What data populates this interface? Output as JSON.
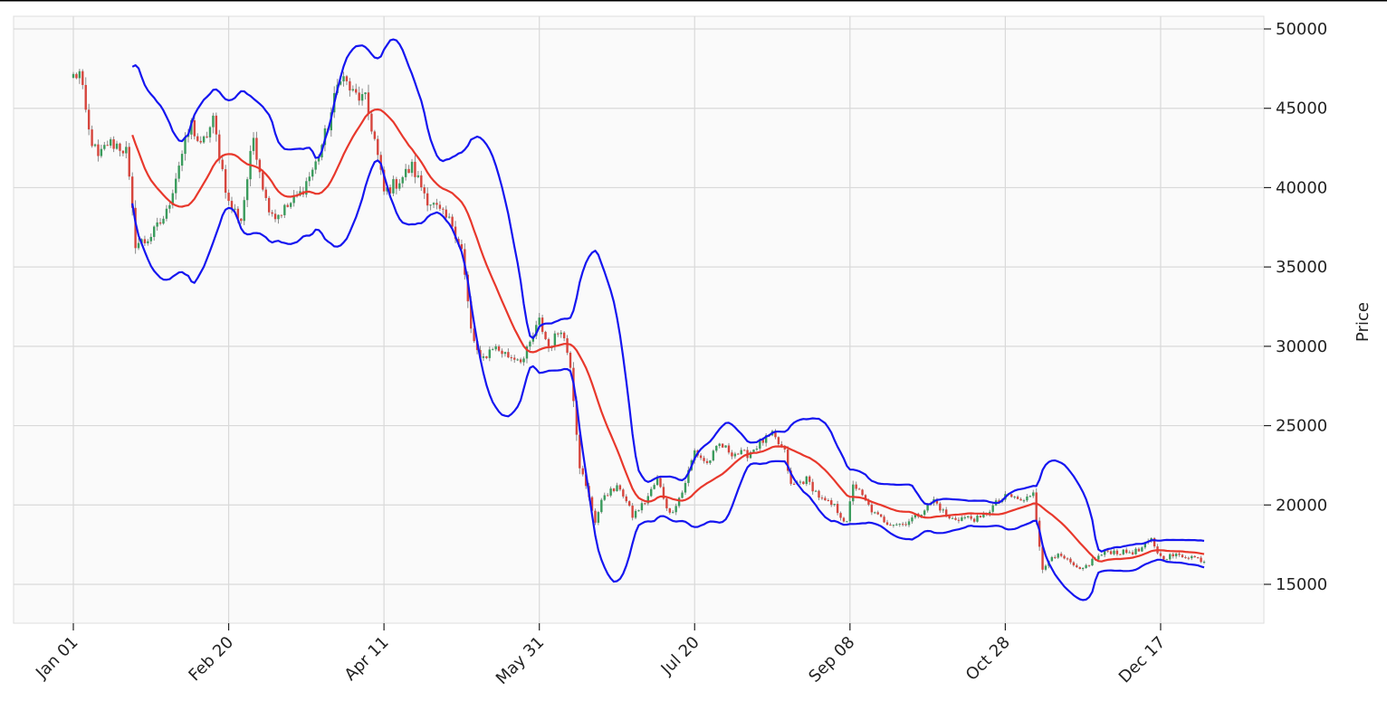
{
  "chart_data": {
    "type": "candlestick",
    "title": "",
    "xlabel": "",
    "ylabel": "Price",
    "ylim": [
      12500,
      51000
    ],
    "grid": true,
    "legend": "none",
    "x_tick_labels": [
      "Jan 01",
      "Feb 20",
      "Apr 11",
      "May 31",
      "Jul 20",
      "Sep 08",
      "Oct 28",
      "Dec 17"
    ],
    "y_ticks": [
      15000,
      20000,
      25000,
      30000,
      35000,
      40000,
      45000,
      50000
    ],
    "y_tick_labels": [
      "15000",
      "20000",
      "25000",
      "30000",
      "35000",
      "40000",
      "45000",
      "50000"
    ],
    "date_range": [
      "2022-01-01",
      "2022-12-31"
    ],
    "candles_color_up": "#3a9b5c",
    "candles_color_down": "#d6453d",
    "close_anchors": [
      [
        "2022-01-01",
        47000
      ],
      [
        "2022-01-03",
        47200
      ],
      [
        "2022-01-06",
        43500
      ],
      [
        "2022-01-09",
        41800
      ],
      [
        "2022-01-12",
        42800
      ],
      [
        "2022-01-15",
        42700
      ],
      [
        "2022-01-18",
        42300
      ],
      [
        "2022-01-21",
        36500
      ],
      [
        "2022-01-24",
        36600
      ],
      [
        "2022-01-27",
        37200
      ],
      [
        "2022-01-31",
        38400
      ],
      [
        "2022-02-04",
        41500
      ],
      [
        "2022-02-08",
        44000
      ],
      [
        "2022-02-11",
        42500
      ],
      [
        "2022-02-15",
        44200
      ],
      [
        "2022-02-20",
        39000
      ],
      [
        "2022-02-24",
        38000
      ],
      [
        "2022-02-28",
        43200
      ],
      [
        "2022-03-04",
        39200
      ],
      [
        "2022-03-07",
        38200
      ],
      [
        "2022-03-11",
        38800
      ],
      [
        "2022-03-15",
        39600
      ],
      [
        "2022-03-20",
        41500
      ],
      [
        "2022-03-24",
        43900
      ],
      [
        "2022-03-28",
        47200
      ],
      [
        "2022-04-01",
        45900
      ],
      [
        "2022-04-05",
        45500
      ],
      [
        "2022-04-08",
        43000
      ],
      [
        "2022-04-11",
        39700
      ],
      [
        "2022-04-15",
        40300
      ],
      [
        "2022-04-20",
        41300
      ],
      [
        "2022-04-25",
        39300
      ],
      [
        "2022-04-30",
        38200
      ],
      [
        "2022-05-03",
        37700
      ],
      [
        "2022-05-06",
        36100
      ],
      [
        "2022-05-09",
        31000
      ],
      [
        "2022-05-12",
        29000
      ],
      [
        "2022-05-16",
        30000
      ],
      [
        "2022-05-21",
        29400
      ],
      [
        "2022-05-26",
        29200
      ],
      [
        "2022-05-31",
        31600
      ],
      [
        "2022-06-03",
        29900
      ],
      [
        "2022-06-07",
        31200
      ],
      [
        "2022-06-10",
        28900
      ],
      [
        "2022-06-13",
        22500
      ],
      [
        "2022-06-16",
        20400
      ],
      [
        "2022-06-18",
        19000
      ],
      [
        "2022-06-21",
        20700
      ],
      [
        "2022-06-26",
        21100
      ],
      [
        "2022-06-30",
        19300
      ],
      [
        "2022-07-04",
        20200
      ],
      [
        "2022-07-08",
        21600
      ],
      [
        "2022-07-12",
        19400
      ],
      [
        "2022-07-16",
        20800
      ],
      [
        "2022-07-20",
        23400
      ],
      [
        "2022-07-24",
        22600
      ],
      [
        "2022-07-28",
        23800
      ],
      [
        "2022-08-01",
        23300
      ],
      [
        "2022-08-06",
        23200
      ],
      [
        "2022-08-10",
        23900
      ],
      [
        "2022-08-14",
        24400
      ],
      [
        "2022-08-18",
        23300
      ],
      [
        "2022-08-20",
        21200
      ],
      [
        "2022-08-25",
        21600
      ],
      [
        "2022-08-30",
        20300
      ],
      [
        "2022-09-03",
        19900
      ],
      [
        "2022-09-07",
        18800
      ],
      [
        "2022-09-09",
        21400
      ],
      [
        "2022-09-13",
        20200
      ],
      [
        "2022-09-16",
        19400
      ],
      [
        "2022-09-20",
        18900
      ],
      [
        "2022-09-25",
        18800
      ],
      [
        "2022-09-30",
        19400
      ],
      [
        "2022-10-05",
        20300
      ],
      [
        "2022-10-10",
        19100
      ],
      [
        "2022-10-15",
        19200
      ],
      [
        "2022-10-20",
        19100
      ],
      [
        "2022-10-25",
        20100
      ],
      [
        "2022-10-29",
        20600
      ],
      [
        "2022-11-03",
        20200
      ],
      [
        "2022-11-06",
        20900
      ],
      [
        "2022-11-09",
        15800
      ],
      [
        "2022-11-12",
        16900
      ],
      [
        "2022-11-16",
        16600
      ],
      [
        "2022-11-21",
        15800
      ],
      [
        "2022-11-25",
        16500
      ],
      [
        "2022-11-30",
        17100
      ],
      [
        "2022-12-05",
        17000
      ],
      [
        "2022-12-10",
        17100
      ],
      [
        "2022-12-14",
        17800
      ],
      [
        "2022-12-17",
        16700
      ],
      [
        "2022-12-21",
        16800
      ],
      [
        "2022-12-26",
        16800
      ],
      [
        "2022-12-31",
        16500
      ]
    ],
    "series": [
      {
        "name": "",
        "role": "moving-average",
        "color": "#e8382c",
        "window_days": 20
      },
      {
        "name": "",
        "role": "upper-band",
        "color": "#1515f0",
        "std_devs": 2
      },
      {
        "name": "",
        "role": "lower-band",
        "color": "#1515f0",
        "std_devs": 2
      }
    ]
  }
}
